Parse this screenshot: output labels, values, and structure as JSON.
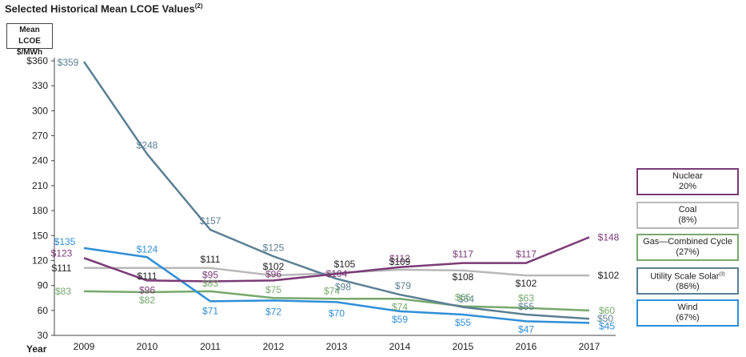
{
  "title": "Selected Historical Mean LCOE Values",
  "title_note": "(2)",
  "unit_label_1": "Mean LCOE",
  "unit_label_2": "$/MWh",
  "chart_data": {
    "type": "line",
    "title": "Selected Historical Mean LCOE Values",
    "xlabel": "Year",
    "ylabel": "Mean LCOE $/MWh",
    "ylim": [
      30,
      360
    ],
    "yticks": [
      30,
      60,
      90,
      120,
      150,
      180,
      210,
      240,
      270,
      300,
      330,
      360
    ],
    "x": [
      "2009",
      "2010",
      "2011",
      "2012",
      "2013",
      "2014",
      "2015",
      "2016",
      "2017"
    ],
    "grid": false,
    "legend_placement": "right",
    "series": [
      {
        "key": "solar",
        "name": "Utility Scale Solar",
        "pct": "(86%)",
        "note": "(3)",
        "color": "#5a7f93",
        "values": [
          359,
          248,
          157,
          125,
          98,
          79,
          64,
          55,
          50
        ]
      },
      {
        "key": "nuclear",
        "name": "Nuclear",
        "pct": "20%",
        "color": "#7b3a76",
        "values": [
          123,
          96,
          95,
          96,
          104,
          112,
          117,
          117,
          148
        ]
      },
      {
        "key": "coal",
        "name": "Coal",
        "pct": "(8%)",
        "color": "#b8b8b8",
        "values": [
          111,
          111,
          111,
          102,
          105,
          109,
          108,
          102,
          102
        ]
      },
      {
        "key": "gas",
        "name": "Gas—Combined Cycle",
        "pct": "(27%)",
        "color": "#76a86b",
        "values": [
          83,
          82,
          83,
          75,
          74,
          74,
          65,
          63,
          60
        ]
      },
      {
        "key": "wind",
        "name": "Wind",
        "pct": "(67%)",
        "color": "#2f8fd8",
        "values": [
          135,
          124,
          71,
          72,
          70,
          59,
          55,
          47,
          45
        ]
      }
    ]
  }
}
